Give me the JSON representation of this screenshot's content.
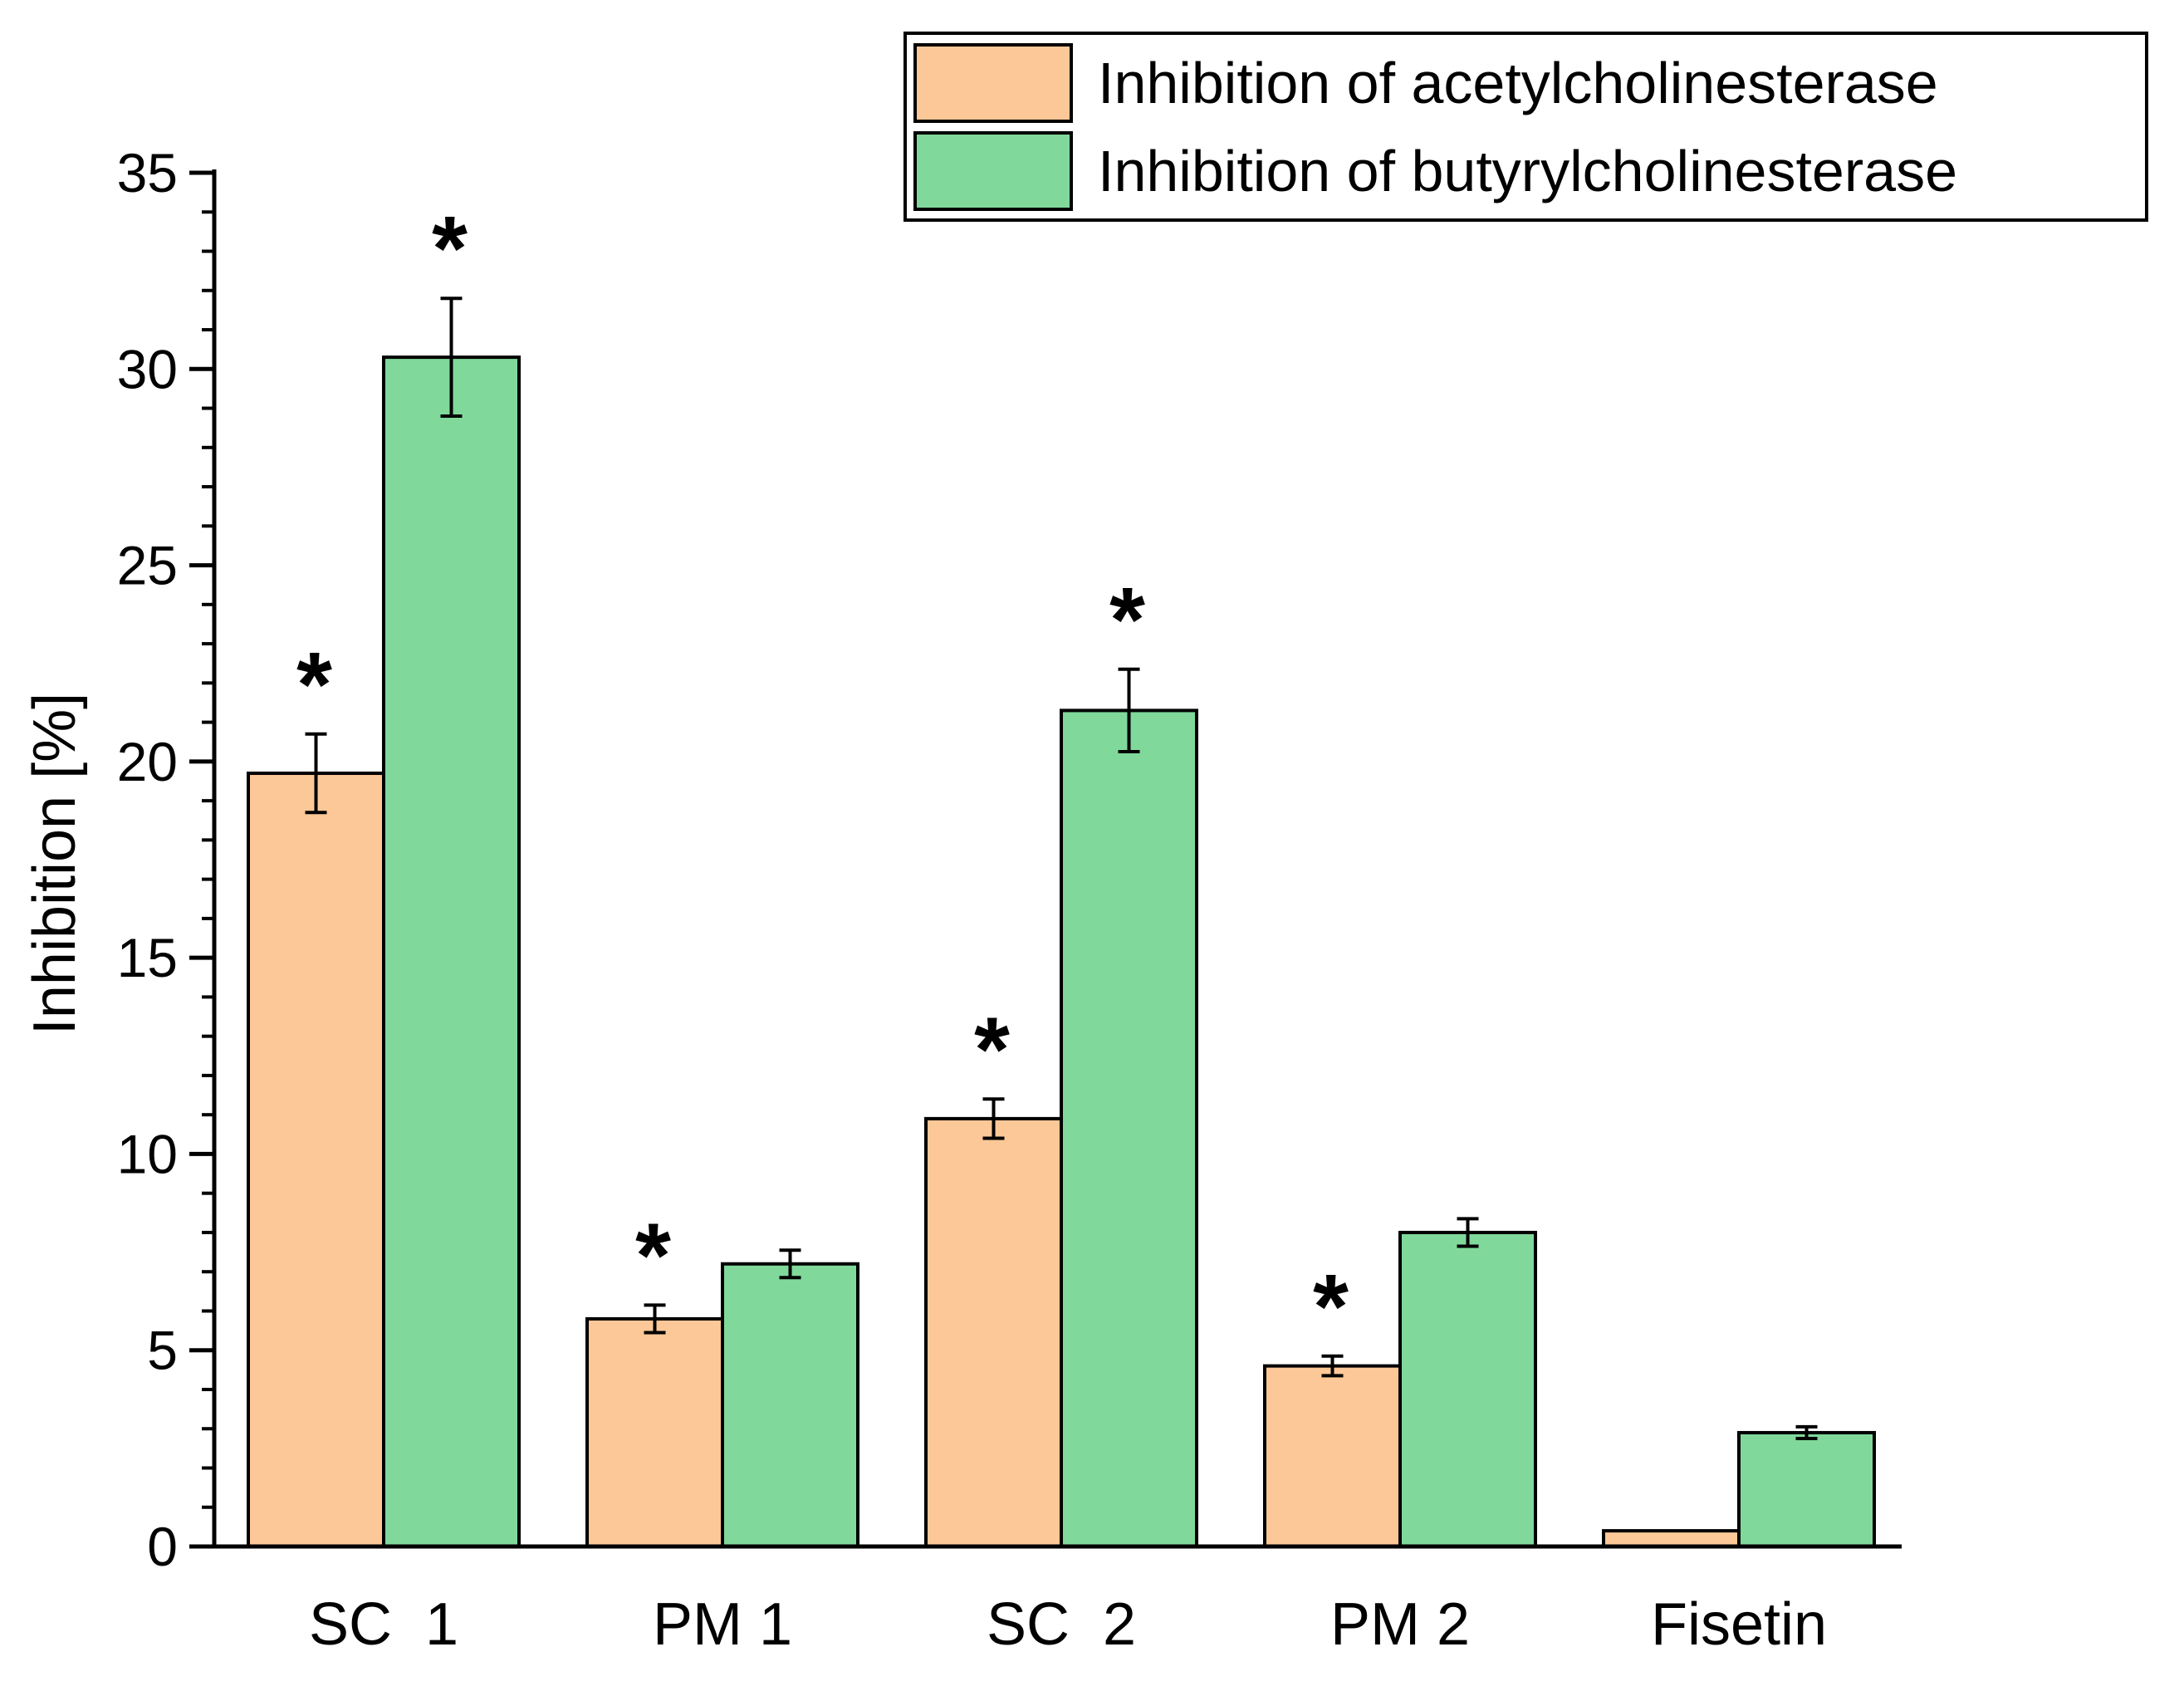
{
  "chart_data": {
    "type": "bar",
    "title": "",
    "xlabel": "",
    "ylabel": "Inhibition [%]",
    "ylim": [
      0,
      35
    ],
    "yticks": [
      "0",
      "5",
      "10",
      "15",
      "20",
      "25",
      "30",
      "35"
    ],
    "categories": [
      "SC  1",
      "PM 1",
      "SC  2",
      "PM 2",
      "Fisetin"
    ],
    "series": [
      {
        "name": "Inhibition of acetylcholinesterase",
        "color": "#FDC897",
        "values": [
          19.7,
          5.8,
          10.9,
          4.6,
          0.4
        ],
        "errors": [
          1.0,
          0.35,
          0.5,
          0.25,
          0.0
        ],
        "significant": [
          true,
          true,
          true,
          true,
          false
        ]
      },
      {
        "name": "Inhibition of butyrylcholinesterase",
        "color": "#80D99B",
        "values": [
          30.3,
          7.2,
          21.3,
          8.0,
          2.9
        ],
        "errors": [
          1.5,
          0.35,
          1.05,
          0.35,
          0.15
        ],
        "significant": [
          true,
          false,
          true,
          false,
          false
        ]
      }
    ],
    "significance_marker": "*",
    "legend_position": "top-right"
  }
}
